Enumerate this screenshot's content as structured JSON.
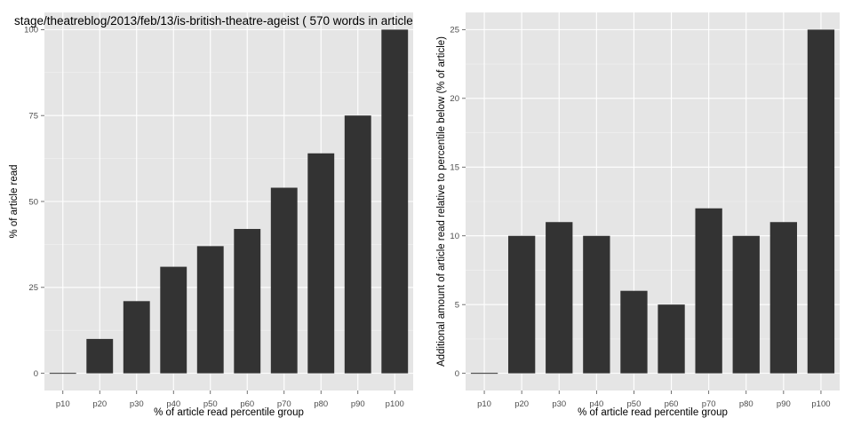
{
  "chart_data": [
    {
      "type": "bar",
      "title": "stage/theatreblog/2013/feb/13/is-british-theatre-ageist ( 570 words in article",
      "xlabel": "% of article read percentile group",
      "ylabel": "% of article read",
      "categories": [
        "p10",
        "p20",
        "p30",
        "p40",
        "p50",
        "p60",
        "p70",
        "p80",
        "p90",
        "p100"
      ],
      "values": [
        0,
        10,
        21,
        31,
        37,
        42,
        54,
        64,
        75,
        100
      ],
      "ylim": [
        -5,
        105
      ],
      "yticks": [
        0,
        25,
        50,
        75,
        100
      ],
      "grid": true,
      "bar_color": "#333333",
      "panel_color": "#e5e5e5"
    },
    {
      "type": "bar",
      "title": "",
      "xlabel": "% of article read percentile group",
      "ylabel": "Additional amount of article read relative to percentile below (% of article)",
      "categories": [
        "p10",
        "p20",
        "p30",
        "p40",
        "p50",
        "p60",
        "p70",
        "p80",
        "p90",
        "p100"
      ],
      "values": [
        0,
        10,
        11,
        10,
        6,
        5,
        12,
        10,
        11,
        25
      ],
      "ylim": [
        -1.25,
        26.25
      ],
      "yticks": [
        0,
        5,
        10,
        15,
        20,
        25
      ],
      "grid": true,
      "bar_color": "#333333",
      "panel_color": "#e5e5e5"
    }
  ]
}
